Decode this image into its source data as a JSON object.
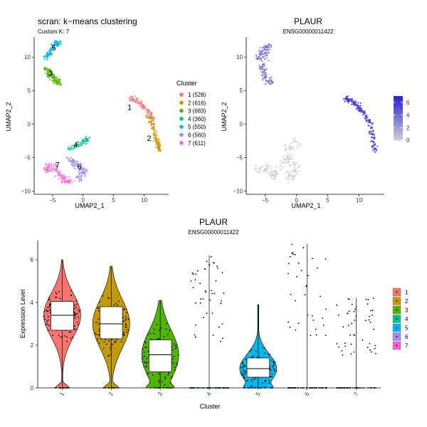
{
  "chart_data": [
    {
      "type": "scatter",
      "title": "scran: k−means clustering",
      "subtitle": "Custom K: 7",
      "xlabel": "UMAP2_1",
      "ylabel": "UMAP2_2",
      "xlim": [
        -8,
        14
      ],
      "ylim": [
        -10.5,
        13
      ],
      "xticks": [
        -5,
        0,
        5,
        10
      ],
      "yticks": [
        -10,
        -5,
        0,
        5,
        10
      ],
      "xtick_labels": [
        "−5",
        "0",
        "5",
        "10"
      ],
      "ytick_labels": [
        "−10",
        "−5",
        "0",
        "5",
        "10"
      ],
      "legend_title": "Cluster",
      "legend_position": "right",
      "series": [
        {
          "name": "1 (528)",
          "color": "#F8766D",
          "label": "1",
          "label_pos": [
            7.6,
            2.1
          ],
          "region": {
            "path": [
              [
                7.8,
                3.8
              ],
              [
                8.8,
                3.5
              ],
              [
                10,
                2.4
              ],
              [
                11,
                1.5
              ],
              [
                11.6,
                0.3
              ]
            ],
            "spread": 0.5,
            "n": 110
          }
        },
        {
          "name": "2 (616)",
          "color": "#C49A00",
          "label": "2",
          "label_pos": [
            10.8,
            -2.5
          ],
          "region": {
            "path": [
              [
                10.6,
                1.2
              ],
              [
                11.5,
                -0.5
              ],
              [
                12,
                -2
              ],
              [
                12.3,
                -3.2
              ],
              [
                12.5,
                -4
              ]
            ],
            "spread": 0.45,
            "n": 110
          }
        },
        {
          "name": "3 (683)",
          "color": "#53B400",
          "label": "3",
          "label_pos": [
            -5.3,
            7.2
          ],
          "region": {
            "path": [
              [
                -6.2,
                8.5
              ],
              [
                -5.4,
                7.4
              ],
              [
                -4.8,
                6.6
              ],
              [
                -3.8,
                6.2
              ]
            ],
            "spread": 0.7,
            "n": 120
          }
        },
        {
          "name": "4 (360)",
          "color": "#00C094",
          "label": "4",
          "label_pos": [
            -1.2,
            -3.5
          ],
          "region": {
            "path": [
              [
                -2.7,
                -3.8
              ],
              [
                -1.3,
                -3.3
              ],
              [
                0,
                -2.8
              ],
              [
                0.8,
                -2.2
              ]
            ],
            "spread": 0.5,
            "n": 70
          }
        },
        {
          "name": "5 (550)",
          "color": "#00B6EB",
          "label": "5",
          "label_pos": [
            -4.8,
            11
          ],
          "region": {
            "path": [
              [
                -6.3,
                9.8
              ],
              [
                -5.4,
                10.8
              ],
              [
                -4.6,
                11.8
              ],
              [
                -3.9,
                12.2
              ]
            ],
            "spread": 0.55,
            "n": 100
          }
        },
        {
          "name": "6 (560)",
          "color": "#A58AFF",
          "label": "6",
          "label_pos": [
            -0.6,
            -6.8
          ],
          "region": {
            "path": [
              [
                -2.2,
                -5.3
              ],
              [
                -0.9,
                -6
              ],
              [
                0.1,
                -7.1
              ],
              [
                -0.7,
                -8.2
              ]
            ],
            "spread": 0.75,
            "n": 110
          }
        },
        {
          "name": "7 (611)",
          "color": "#FB61D7",
          "label": "7",
          "label_pos": [
            -4.2,
            -6.5
          ],
          "region": {
            "path": [
              [
                -6.3,
                -7
              ],
              [
                -5.2,
                -6.2
              ],
              [
                -4,
                -7.3
              ],
              [
                -3.2,
                -8.3
              ],
              [
                -2,
                -8.5
              ]
            ],
            "spread": 0.75,
            "n": 115
          }
        }
      ]
    },
    {
      "type": "scatter",
      "title": "PLAUR",
      "subtitle": "ENSG00000011422",
      "xlabel": "UMAP2_1",
      "ylabel": "UMAP2_2",
      "xlim": [
        -8,
        14
      ],
      "ylim": [
        -10.5,
        13
      ],
      "xticks": [
        -5,
        0,
        5,
        10
      ],
      "yticks": [
        -10,
        -5,
        0,
        5,
        10
      ],
      "xtick_labels": [
        "−5",
        "0",
        "5",
        "10"
      ],
      "ytick_labels": [
        "−10",
        "−5",
        "0",
        "5",
        "10"
      ],
      "colorbar": {
        "min": 0,
        "max": 7,
        "ticks": [
          0,
          2,
          4,
          6
        ],
        "low_color": "#D3D3D3",
        "high_color": "#2C20E0"
      },
      "regions": [
        {
          "cluster": "1/2",
          "mean_expression": 5.5,
          "path": [
            [
              7.8,
              3.8
            ],
            [
              8.8,
              3.5
            ],
            [
              10,
              2.4
            ],
            [
              11,
              1.4
            ],
            [
              11.8,
              0
            ],
            [
              12.2,
              -2
            ],
            [
              12.5,
              -4
            ]
          ],
          "spread": 0.5,
          "n": 180
        },
        {
          "cluster": "3/5",
          "mean_expression": 3.3,
          "path": [
            [
              -6.3,
              9.8
            ],
            [
              -5.4,
              10.8
            ],
            [
              -4.4,
              11.8
            ],
            [
              -5.6,
              8.4
            ],
            [
              -5,
              7
            ],
            [
              -3.9,
              6.2
            ]
          ],
          "spread": 0.65,
          "n": 170
        },
        {
          "cluster": "4/6/7",
          "mean_expression": 0.6,
          "path": [
            [
              -6.3,
              -7
            ],
            [
              -4.8,
              -6.4
            ],
            [
              -3.4,
              -8
            ],
            [
              -1.6,
              -5.2
            ],
            [
              0.2,
              -6.6
            ],
            [
              -1.2,
              -8.4
            ],
            [
              -1.5,
              -3.6
            ],
            [
              0.6,
              -2.5
            ]
          ],
          "spread": 0.85,
          "n": 190
        }
      ]
    },
    {
      "type": "violin",
      "title": "PLAUR",
      "subtitle": "ENSG00000011422",
      "xlabel": "Cluster",
      "ylabel": "Expression Level",
      "ylim": [
        0,
        6.9
      ],
      "yticks": [
        0,
        2,
        4,
        6
      ],
      "legend_position": "right",
      "categories": [
        "1",
        "2",
        "3",
        "4",
        "5",
        "6",
        "7"
      ],
      "colors": [
        "#F8766D",
        "#C49A00",
        "#53B400",
        "#00C094",
        "#00B6EB",
        "#A58AFF",
        "#FB61D7"
      ],
      "series": [
        {
          "name": "1",
          "min": 0,
          "q1": 2.7,
          "median": 3.4,
          "q3": 4.05,
          "max": 6.0
        },
        {
          "name": "2",
          "min": 0,
          "q1": 2.3,
          "median": 3.0,
          "q3": 3.8,
          "max": 5.7
        },
        {
          "name": "3",
          "min": 0,
          "q1": 0.75,
          "median": 1.55,
          "q3": 2.25,
          "max": 4.1
        },
        {
          "name": "4",
          "min": 0,
          "q1": 0,
          "median": 0,
          "q3": 0,
          "max": 6.2
        },
        {
          "name": "5",
          "min": 0,
          "q1": 0.5,
          "median": 0.9,
          "q3": 1.4,
          "max": 3.9
        },
        {
          "name": "6",
          "min": 0,
          "q1": 0,
          "median": 0,
          "q3": 0,
          "max": 6.75
        },
        {
          "name": "7",
          "min": 0,
          "q1": 0,
          "median": 0,
          "q3": 0,
          "max": 4.2
        }
      ]
    }
  ]
}
